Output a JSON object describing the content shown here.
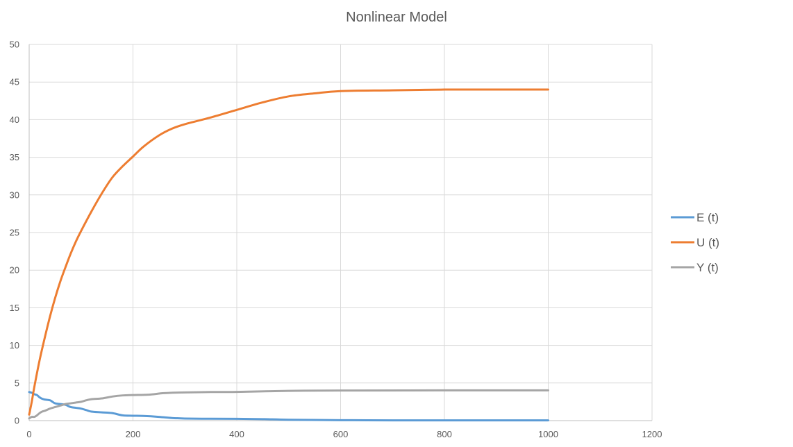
{
  "chart_data": {
    "type": "line",
    "title": "Nonlinear Model",
    "xlabel": "",
    "ylabel": "",
    "xlim": [
      0,
      1200
    ],
    "ylim": [
      0,
      50
    ],
    "x_ticks": [
      0,
      200,
      400,
      600,
      800,
      1000,
      1200
    ],
    "y_ticks": [
      0,
      5,
      10,
      15,
      20,
      25,
      30,
      35,
      40,
      45,
      50
    ],
    "grid": true,
    "legend_position": "right",
    "series": [
      {
        "name": "E (t)",
        "color": "#5b9bd5",
        "x": [
          0,
          5,
          10,
          15,
          20,
          25,
          30,
          40,
          45,
          50,
          60,
          70,
          80,
          90,
          100,
          110,
          120,
          140,
          160,
          180,
          200,
          220,
          250,
          275,
          300,
          350,
          400,
          450,
          500,
          600,
          700,
          800,
          900,
          1000
        ],
        "y": [
          3.8,
          3.7,
          3.5,
          3.4,
          3.1,
          2.9,
          2.8,
          2.7,
          2.5,
          2.3,
          2.2,
          2.1,
          1.8,
          1.7,
          1.6,
          1.4,
          1.2,
          1.1,
          1.0,
          0.7,
          0.65,
          0.62,
          0.5,
          0.35,
          0.28,
          0.25,
          0.24,
          0.2,
          0.12,
          0.06,
          0.04,
          0.03,
          0.03,
          0.03
        ]
      },
      {
        "name": "U (t)",
        "color": "#ed7d31",
        "x": [
          0,
          5,
          10,
          20,
          30,
          40,
          50,
          60,
          70,
          80,
          90,
          100,
          120,
          140,
          160,
          180,
          200,
          220,
          250,
          275,
          300,
          350,
          400,
          450,
          500,
          550,
          600,
          700,
          800,
          900,
          1000
        ],
        "y": [
          0.8,
          2.5,
          4.5,
          8,
          11,
          13.8,
          16.3,
          18.5,
          20.4,
          22.2,
          23.8,
          25.2,
          27.8,
          30.2,
          32.3,
          33.8,
          35.1,
          36.4,
          37.9,
          38.8,
          39.4,
          40.3,
          41.3,
          42.3,
          43.1,
          43.5,
          43.8,
          43.9,
          44.0,
          44.0,
          44.0
        ]
      },
      {
        "name": "Y (t)",
        "color": "#a5a5a5",
        "x": [
          0,
          5,
          10,
          15,
          20,
          25,
          30,
          40,
          50,
          60,
          70,
          80,
          90,
          100,
          110,
          120,
          140,
          160,
          180,
          200,
          230,
          260,
          300,
          350,
          400,
          500,
          600,
          800,
          1000
        ],
        "y": [
          0.3,
          0.5,
          0.5,
          0.7,
          1.0,
          1.2,
          1.3,
          1.6,
          1.8,
          2.0,
          2.2,
          2.3,
          2.4,
          2.5,
          2.7,
          2.85,
          2.95,
          3.2,
          3.35,
          3.4,
          3.45,
          3.65,
          3.75,
          3.8,
          3.82,
          3.95,
          4.0,
          4.02,
          4.02
        ]
      }
    ]
  }
}
